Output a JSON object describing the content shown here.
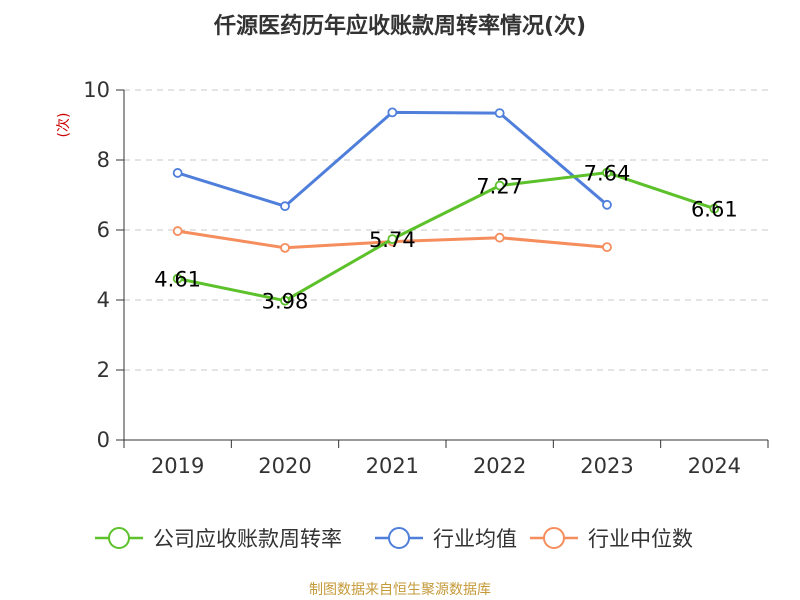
{
  "chart_data": {
    "type": "line",
    "title": "仟源医药历年应收账款周转率情况(次)",
    "ylabel": "(次)",
    "xlabel": "",
    "categories": [
      "2019",
      "2020",
      "2021",
      "2022",
      "2023",
      "2024"
    ],
    "ylim": [
      0,
      10
    ],
    "yticks": [
      0,
      2,
      4,
      6,
      8,
      10
    ],
    "grid": true,
    "legend_position": "bottom",
    "series": [
      {
        "name": "公司应收账款周转率",
        "values": [
          4.61,
          3.98,
          5.74,
          7.27,
          7.64,
          6.61
        ],
        "labels": [
          "4.61",
          "3.98",
          "5.74",
          "7.27",
          "7.64",
          "6.61"
        ],
        "color": "#5cc12a"
      },
      {
        "name": "行业均值",
        "values": [
          7.63,
          6.68,
          9.36,
          9.34,
          6.72,
          null
        ],
        "color": "#4f7fdb"
      },
      {
        "name": "行业中位数",
        "values": [
          5.97,
          5.49,
          5.67,
          5.78,
          5.51,
          null
        ],
        "color": "#f58d5c"
      }
    ]
  },
  "source": "制图数据来自恒生聚源数据库"
}
